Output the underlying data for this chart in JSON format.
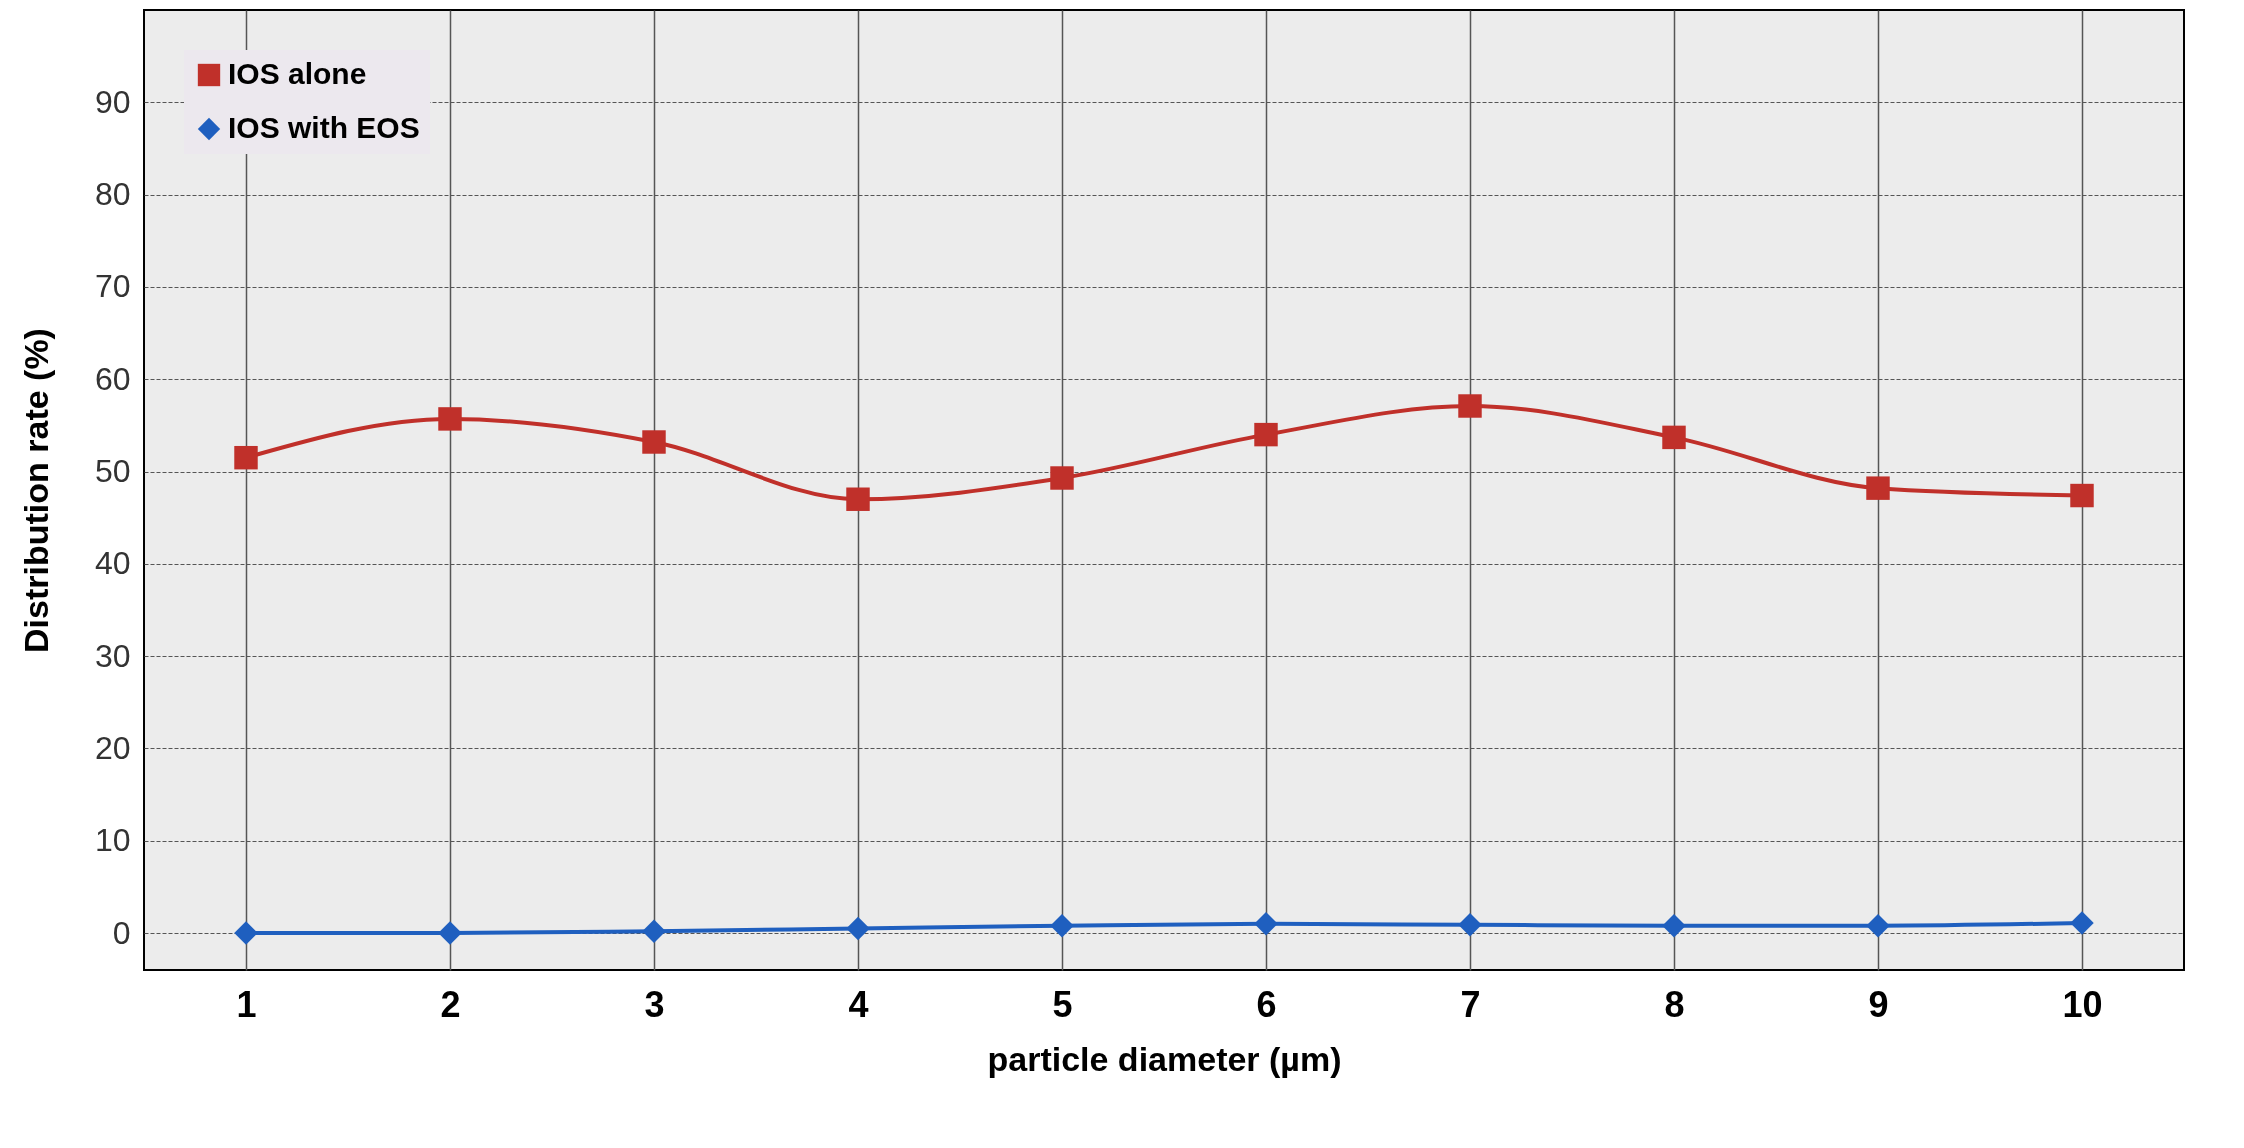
{
  "chart_data": {
    "type": "line",
    "xlabel": "particle diameter (µm)",
    "ylabel": "Distribution rate (%)",
    "categories": [
      "1",
      "2",
      "3",
      "4",
      "5",
      "6",
      "7",
      "8",
      "9",
      "10"
    ],
    "series": [
      {
        "name": "IOS alone",
        "color": "#c0302a",
        "marker": "square",
        "values": [
          51.5,
          55.7,
          53.2,
          47,
          49.3,
          54,
          57.1,
          53.7,
          48.2,
          47.4
        ]
      },
      {
        "name": "IOS with EOS",
        "color": "#1f5fbf",
        "marker": "diamond",
        "values": [
          0,
          0,
          0.2,
          0.5,
          0.8,
          1,
          0.9,
          0.8,
          0.8,
          1.1
        ]
      }
    ],
    "ylim": [
      -4,
      100
    ],
    "yticks": [
      0,
      10,
      20,
      30,
      40,
      50,
      60,
      70,
      80,
      90
    ],
    "grid": true,
    "legend": "top left",
    "line_style": "solid"
  }
}
